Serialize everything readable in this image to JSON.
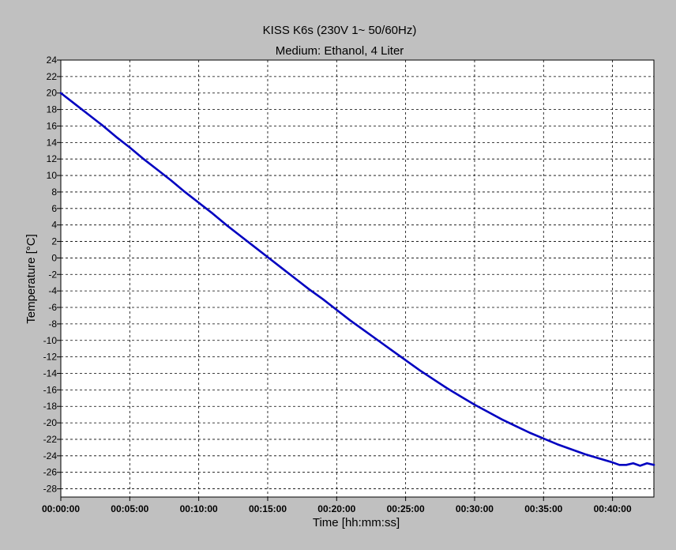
{
  "chart_data": {
    "type": "line",
    "title": "KISS K6s (230V 1~ 50/60Hz)",
    "subtitle": "Medium: Ethanol, 4 Liter",
    "xlabel": "Time [hh:mm:ss]",
    "ylabel": "Temperature [°C]",
    "xlim": [
      "00:00:00",
      "00:43:00"
    ],
    "ylim": [
      -29,
      24
    ],
    "x_ticks": [
      "00:00:00",
      "00:05:00",
      "00:10:00",
      "00:15:00",
      "00:20:00",
      "00:25:00",
      "00:30:00",
      "00:35:00",
      "00:40:00"
    ],
    "y_ticks": [
      24,
      22,
      20,
      18,
      16,
      14,
      12,
      10,
      8,
      6,
      4,
      2,
      0,
      -2,
      -4,
      -6,
      -8,
      -10,
      -12,
      -14,
      -16,
      -18,
      -20,
      -22,
      -24,
      -26,
      -28
    ],
    "grid": true,
    "series_color": "#0000c0",
    "series": [
      {
        "x": [
          "00:00:00",
          "00:01:00",
          "00:02:00",
          "00:03:00",
          "00:04:00",
          "00:05:00",
          "00:06:00",
          "00:07:00",
          "00:08:00",
          "00:09:00",
          "00:10:00",
          "00:11:00",
          "00:12:00",
          "00:13:00",
          "00:14:00",
          "00:15:00",
          "00:16:00",
          "00:17:00",
          "00:18:00",
          "00:19:00",
          "00:20:00",
          "00:21:00",
          "00:22:00",
          "00:23:00",
          "00:24:00",
          "00:25:00",
          "00:26:00",
          "00:27:00",
          "00:28:00",
          "00:29:00",
          "00:30:00",
          "00:31:00",
          "00:32:00",
          "00:33:00",
          "00:34:00",
          "00:35:00",
          "00:36:00",
          "00:37:00",
          "00:38:00",
          "00:39:00",
          "00:40:00",
          "00:40:30",
          "00:41:00",
          "00:41:30",
          "00:42:00",
          "00:42:30",
          "00:43:00"
        ],
        "y": [
          20.0,
          18.7,
          17.4,
          16.1,
          14.7,
          13.4,
          12.0,
          10.7,
          9.4,
          8.0,
          6.7,
          5.4,
          4.0,
          2.7,
          1.4,
          0.1,
          -1.2,
          -2.5,
          -3.8,
          -5.0,
          -6.3,
          -7.6,
          -8.8,
          -10.0,
          -11.2,
          -12.4,
          -13.6,
          -14.7,
          -15.8,
          -16.8,
          -17.8,
          -18.7,
          -19.6,
          -20.4,
          -21.2,
          -21.9,
          -22.6,
          -23.2,
          -23.8,
          -24.3,
          -24.8,
          -25.1,
          -25.1,
          -24.9,
          -25.2,
          -24.9,
          -25.1
        ]
      }
    ]
  }
}
